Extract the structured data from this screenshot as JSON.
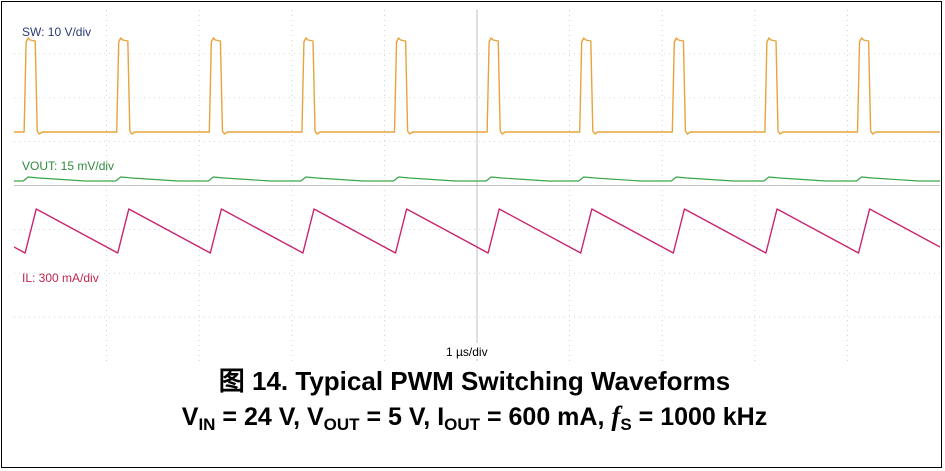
{
  "chart_data": {
    "type": "line",
    "title": "",
    "xlabel": "1 µs/div",
    "ylabel": "",
    "x_range_us": [
      0,
      10
    ],
    "grid": true,
    "grid_divisions": {
      "x": 10,
      "y": 8
    },
    "series": [
      {
        "name": "SW: 10 V/div",
        "color": "#e8a33c",
        "kind": "pulse",
        "period_us": 1.0,
        "rise_times_us": [
          0.12,
          1.12,
          2.12,
          3.12,
          4.12,
          5.12,
          6.12,
          7.12,
          8.12,
          9.12
        ],
        "pulse_width_us": 0.12,
        "high_div": 1.9,
        "low_div": 0.0
      },
      {
        "name": "VOUT: 15 mV/div",
        "color": "#3aa64a",
        "kind": "ripple",
        "period_us": 1.0
      },
      {
        "name": "IL: 300 mA/div",
        "color": "#c8246e",
        "kind": "triangle",
        "period_us": 1.0,
        "peak_times_us": [
          0.24,
          1.24,
          2.24,
          3.24,
          4.24,
          5.24,
          6.24,
          7.24,
          8.24,
          9.24
        ],
        "valley_times_us": [
          0.12,
          1.12,
          2.12,
          3.12,
          4.12,
          5.12,
          6.12,
          7.12,
          8.12,
          9.12
        ]
      }
    ]
  },
  "caption": {
    "figure_prefix": "图",
    "figure_title": "14. Typical PWM Switching Waveforms",
    "v_in_label": "V",
    "v_in_sub": "IN",
    "v_in_value": " = 24 V, ",
    "v_out_label": "V",
    "v_out_sub": "OUT",
    "v_out_value": " = 5 V, ",
    "i_out_label": "I",
    "i_out_sub": "OUT",
    "i_out_value": " = 600 mA, ",
    "fs_label": "f",
    "fs_sub": "S",
    "fs_value": " = 1000 kHz"
  }
}
